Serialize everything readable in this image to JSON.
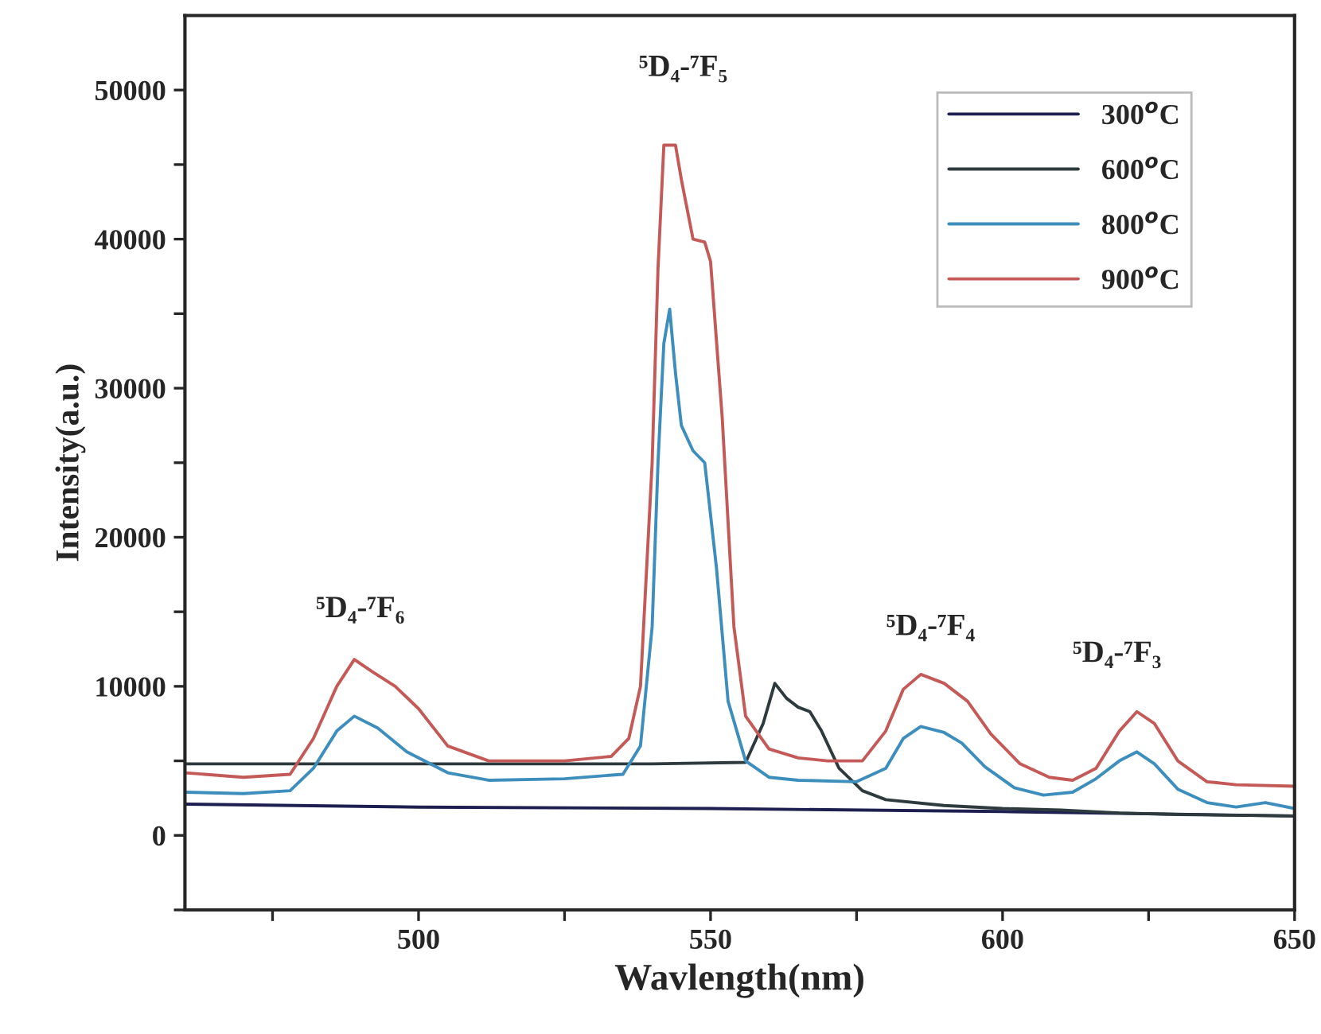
{
  "chart_data": {
    "type": "line",
    "xlabel": "Wavlength(nm)",
    "ylabel": "Intensity(a.u.)",
    "xlim": [
      460,
      650
    ],
    "ylim": [
      -5000,
      55000
    ],
    "xticks": [
      {
        "value": 475,
        "label": null
      },
      500,
      {
        "value": 525,
        "label": null
      },
      550,
      {
        "value": 575,
        "label": null
      },
      600,
      {
        "value": 625,
        "label": null
      },
      650
    ],
    "yticks": [
      {
        "value": -5000,
        "label": null
      },
      0,
      {
        "value": 5000,
        "label": null
      },
      10000,
      {
        "value": 15000,
        "label": null
      },
      20000,
      {
        "value": 25000,
        "label": null
      },
      30000,
      {
        "value": 35000,
        "label": null
      },
      40000,
      {
        "value": 45000,
        "label": null
      },
      50000
    ],
    "grid": false,
    "legend": "top right",
    "line_style": "solid",
    "marker": "none",
    "annotations": [
      "⁵D₄-⁷F₆",
      "⁵D₄-⁷F₅",
      "⁵D₄-⁷F₄",
      "⁵D₄-⁷F₃"
    ],
    "series": [
      {
        "name": "300$^{o}$C",
        "color": "#1c1f4f",
        "x": [
          460,
          500,
          550,
          600,
          650
        ],
        "values": [
          2100,
          1900,
          1800,
          1600,
          1300
        ]
      },
      {
        "name": "600$^{o}$C",
        "color": "#2e3b3e",
        "x": [
          460,
          500,
          540,
          556,
          559,
          561,
          563,
          565,
          567,
          569,
          572,
          576,
          580,
          590,
          600,
          610,
          620,
          630,
          650
        ],
        "values": [
          4800,
          4800,
          4800,
          4900,
          7500,
          10200,
          9200,
          8600,
          8300,
          7000,
          4500,
          3000,
          2400,
          2000,
          1800,
          1700,
          1500,
          1400,
          1300
        ]
      },
      {
        "name": "800$^{o}$C",
        "color": "#3d8ebd",
        "x": [
          460,
          470,
          478,
          482,
          486,
          489,
          493,
          498,
          505,
          512,
          525,
          535,
          538,
          540,
          541,
          542,
          543,
          544,
          545,
          547,
          549,
          551,
          553,
          556,
          560,
          565,
          575,
          580,
          583,
          586,
          590,
          593,
          597,
          602,
          607,
          612,
          616,
          620,
          623,
          626,
          630,
          635,
          640,
          645,
          650
        ],
        "values": [
          2900,
          2800,
          3000,
          4500,
          7000,
          8000,
          7200,
          5600,
          4200,
          3700,
          3800,
          4100,
          6000,
          14000,
          25000,
          33000,
          35300,
          31000,
          27500,
          25800,
          25000,
          18000,
          9000,
          5000,
          3900,
          3700,
          3600,
          4500,
          6500,
          7300,
          6900,
          6200,
          4600,
          3200,
          2700,
          2900,
          3800,
          5000,
          5600,
          4800,
          3100,
          2200,
          1900,
          2200,
          1800
        ]
      },
      {
        "name": "900$^{o}$C",
        "color": "#c45a57",
        "x": [
          460,
          470,
          478,
          482,
          486,
          489,
          492,
          496,
          500,
          505,
          512,
          525,
          533,
          536,
          538,
          540,
          541,
          542,
          544,
          545,
          547,
          549,
          550,
          552,
          554,
          556,
          560,
          565,
          570,
          576,
          580,
          583,
          586,
          590,
          594,
          598,
          603,
          608,
          612,
          616,
          620,
          623,
          626,
          630,
          635,
          640,
          650
        ],
        "values": [
          4200,
          3900,
          4100,
          6500,
          10000,
          11800,
          11000,
          10000,
          8500,
          6000,
          5000,
          5000,
          5300,
          6500,
          10000,
          25000,
          38000,
          46300,
          46300,
          44000,
          40000,
          39800,
          38500,
          28000,
          14000,
          8000,
          5800,
          5200,
          5000,
          5000,
          7000,
          9800,
          10800,
          10200,
          9000,
          6800,
          4800,
          3900,
          3700,
          4500,
          7000,
          8300,
          7500,
          5000,
          3600,
          3400,
          3300
        ]
      }
    ]
  }
}
